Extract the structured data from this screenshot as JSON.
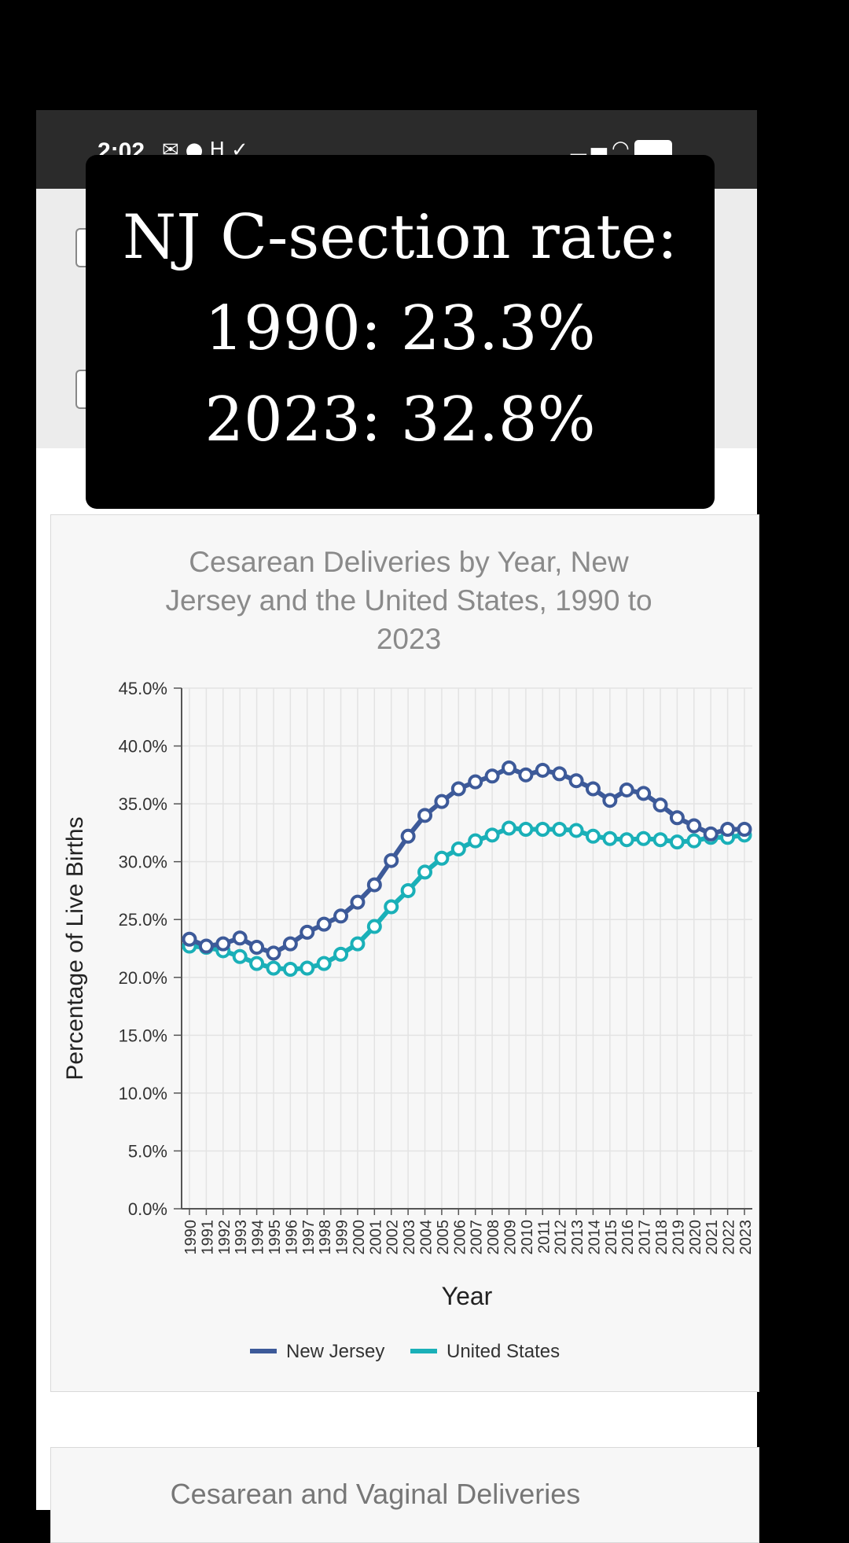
{
  "status_bar": {
    "time": "2:02",
    "left_icons": [
      "mail-icon",
      "messenger-icon",
      "hy-icon",
      "check-icon"
    ],
    "right_icons": [
      "signal-icon",
      "wifi-icon",
      "battery-icon"
    ]
  },
  "overlay": {
    "line1": "NJ C-section rate:",
    "line2": "1990: 23.3%",
    "line3": "2023: 32.8%"
  },
  "chart_data": {
    "type": "line",
    "title": "Cesarean Deliveries by Year, New Jersey and the United States, 1990 to 2023",
    "title_lines": [
      "Cesarean Deliveries by Year, New",
      "Jersey and the United States, 1990 to",
      "2023"
    ],
    "xlabel": "Year",
    "ylabel": "Percentage of Live Births",
    "ylim": [
      0,
      45
    ],
    "y_ticks": [
      "0.0%",
      "5.0%",
      "10.0%",
      "15.0%",
      "20.0%",
      "25.0%",
      "30.0%",
      "35.0%",
      "40.0%",
      "45.0%"
    ],
    "x": [
      "1990",
      "1991",
      "1992",
      "1993",
      "1994",
      "1995",
      "1996",
      "1997",
      "1998",
      "1999",
      "2000",
      "2001",
      "2002",
      "2003",
      "2004",
      "2005",
      "2006",
      "2007",
      "2008",
      "2009",
      "2010",
      "2011",
      "2012",
      "2013",
      "2014",
      "2015",
      "2016",
      "2017",
      "2018",
      "2019",
      "2020",
      "2021",
      "2022",
      "2023"
    ],
    "grid": true,
    "legend_position": "bottom",
    "series": [
      {
        "name": "New Jersey",
        "color": "#3d5a99",
        "values": [
          23.3,
          22.7,
          22.9,
          23.4,
          22.6,
          22.1,
          22.9,
          23.9,
          24.6,
          25.3,
          26.5,
          28.0,
          30.1,
          32.2,
          34.0,
          35.2,
          36.3,
          36.9,
          37.4,
          38.1,
          37.5,
          37.9,
          37.6,
          37.0,
          36.3,
          35.3,
          36.2,
          35.9,
          34.9,
          33.8,
          33.1,
          32.4,
          32.8,
          32.8
        ]
      },
      {
        "name": "United States",
        "color": "#1ab0b8",
        "values": [
          22.7,
          22.6,
          22.3,
          21.8,
          21.2,
          20.8,
          20.7,
          20.8,
          21.2,
          22.0,
          22.9,
          24.4,
          26.1,
          27.5,
          29.1,
          30.3,
          31.1,
          31.8,
          32.3,
          32.9,
          32.8,
          32.8,
          32.8,
          32.7,
          32.2,
          32.0,
          31.9,
          32.0,
          31.9,
          31.7,
          31.8,
          32.1,
          32.1,
          32.3
        ]
      }
    ]
  },
  "next_card": {
    "title": "Cesarean and Vaginal Deliveries"
  }
}
